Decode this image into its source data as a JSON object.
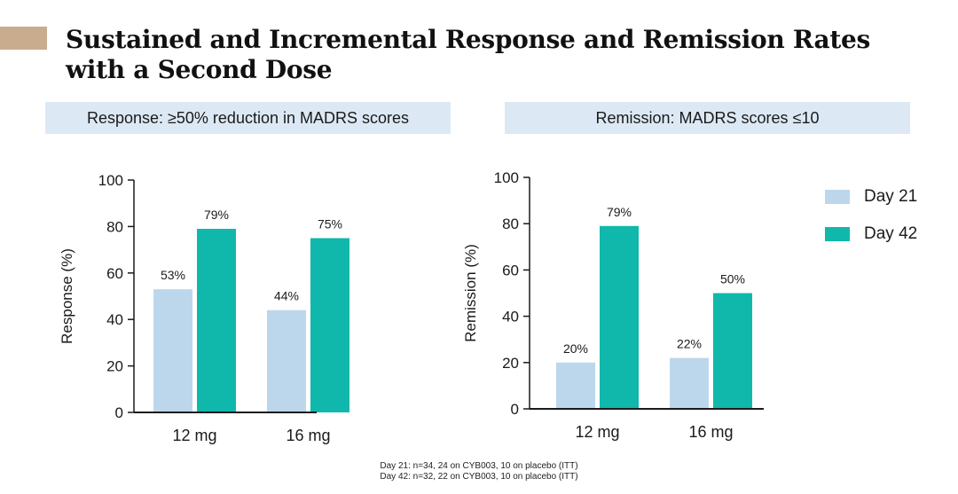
{
  "slide": {
    "title_line1": "Sustained and Incremental Response and Remission Rates",
    "title_line2": "with a Second Dose"
  },
  "colors": {
    "accent": "#c9ab8e",
    "header_bg": "#dce9f5",
    "day21": "#bcd7ec",
    "day42": "#10b8ac"
  },
  "legend": {
    "items": [
      {
        "label": "Day 21",
        "color": "#bcd7ec"
      },
      {
        "label": "Day 42",
        "color": "#10b8ac"
      }
    ]
  },
  "footnote": {
    "line1": "Day 21: n=34, 24 on CYB003, 10 on placebo (ITT)",
    "line2": "Day 42: n=32, 22 on CYB003, 10 on placebo (ITT)"
  },
  "chart_data": [
    {
      "type": "bar",
      "header": "Response: ≥50% reduction in MADRS scores",
      "title": "",
      "categories": [
        "12 mg",
        "16 mg"
      ],
      "series": [
        {
          "name": "Day 21",
          "values": [
            53,
            44
          ],
          "labels": [
            "53%",
            "44%"
          ]
        },
        {
          "name": "Day 42",
          "values": [
            79,
            75
          ],
          "labels": [
            "79%",
            "75%"
          ]
        }
      ],
      "xlabel": "",
      "ylabel": "Response  (%)",
      "ylim": [
        0,
        100
      ],
      "yticks": [
        0,
        20,
        40,
        60,
        80,
        100
      ],
      "grid": false
    },
    {
      "type": "bar",
      "header": "Remission: MADRS scores ≤10",
      "title": "",
      "categories": [
        "12 mg",
        "16 mg"
      ],
      "series": [
        {
          "name": "Day 21",
          "values": [
            20,
            22
          ],
          "labels": [
            "20%",
            "22%"
          ]
        },
        {
          "name": "Day 42",
          "values": [
            79,
            50
          ],
          "labels": [
            "79%",
            "50%"
          ]
        }
      ],
      "xlabel": "",
      "ylabel": "Remission  (%)",
      "ylim": [
        0,
        100
      ],
      "yticks": [
        0,
        20,
        40,
        60,
        80,
        100
      ],
      "grid": false
    }
  ]
}
